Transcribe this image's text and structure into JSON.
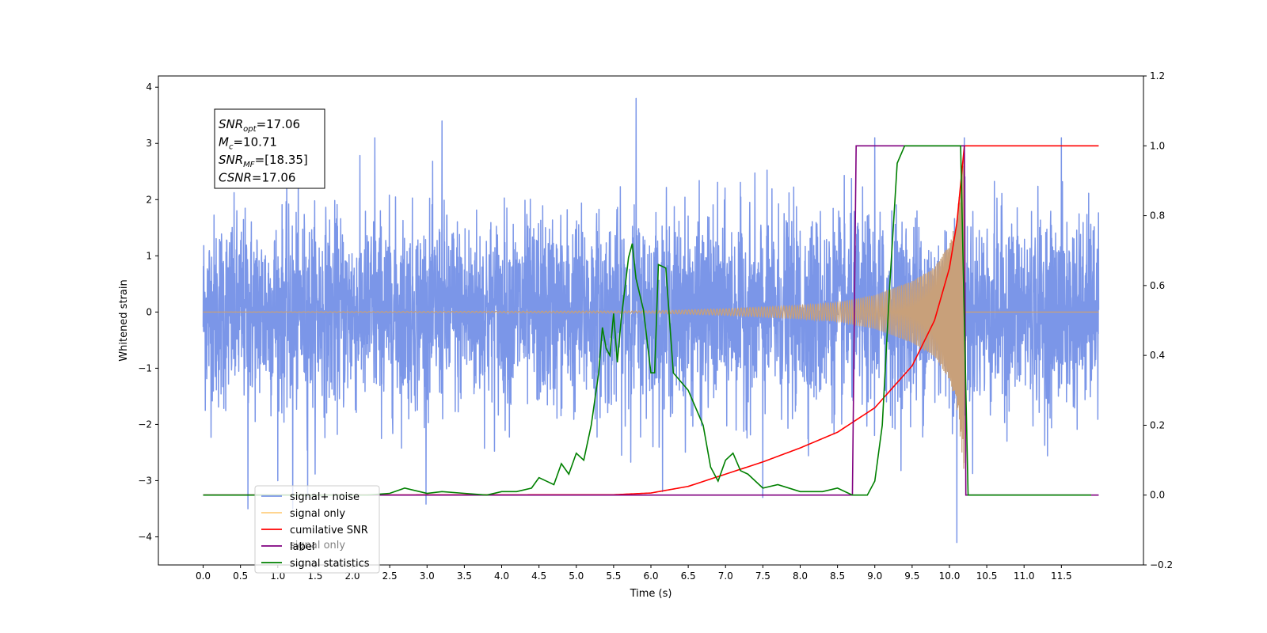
{
  "chart_data": {
    "type": "line",
    "xlabel": "Time (s)",
    "ylabel": "Whitened strain",
    "xlim": [
      -0.6,
      12.6
    ],
    "ylim": [
      -4.5,
      4.2
    ],
    "y2lim": [
      -0.2,
      1.2
    ],
    "x_ticks": [
      "0.0",
      "0.5",
      "1.0",
      "1.5",
      "2.0",
      "2.5",
      "3.0",
      "3.5",
      "4.0",
      "4.5",
      "5.0",
      "5.5",
      "6.0",
      "6.5",
      "7.0",
      "7.5",
      "8.0",
      "8.5",
      "9.0",
      "9.5",
      "10.0",
      "10.5",
      "11.0",
      "11.5"
    ],
    "y_ticks": [
      "−4",
      "−3",
      "−2",
      "−1",
      "0",
      "1",
      "2",
      "3",
      "4"
    ],
    "y2_ticks": [
      "−0.2",
      "0.0",
      "0.2",
      "0.4",
      "0.6",
      "0.8",
      "1.0",
      "1.2"
    ],
    "annotation": {
      "lines": [
        {
          "name": "SNR",
          "sub": "opt",
          "value": "=17.06"
        },
        {
          "name": "M",
          "sub": "c",
          "value": "=10.71"
        },
        {
          "name": "SNR",
          "sub": "MF",
          "value": "=[18.35]"
        },
        {
          "name": "CSNR",
          "sub": "",
          "value": "=17.06"
        }
      ]
    },
    "legend": {
      "position": "lower-left",
      "entries": [
        {
          "label": "signal+ noise",
          "color": "#7b96e8"
        },
        {
          "label": "signal only",
          "color": "#ffcf80"
        },
        {
          "label": "cumilative SNR",
          "color": "#ff0000"
        },
        {
          "label": "label",
          "color": "#800080"
        },
        {
          "label": "signal statistics",
          "color": "#008000"
        }
      ],
      "faded_label": "signal only"
    },
    "series": [
      {
        "name": "signal+ noise",
        "axis": "left",
        "color": "#7b96e8",
        "x_range": [
          0.0,
          12.0
        ],
        "noise_std": 1.0,
        "outliers": [
          [
            0.6,
            -3.5
          ],
          [
            1.0,
            -3.0
          ],
          [
            1.4,
            -3.3
          ],
          [
            2.3,
            3.1
          ],
          [
            3.2,
            3.4
          ],
          [
            5.8,
            3.8
          ],
          [
            9.0,
            3.1
          ],
          [
            10.1,
            -4.1
          ],
          [
            10.2,
            3.1
          ],
          [
            11.5,
            3.1
          ],
          [
            7.5,
            -3.3
          ],
          [
            1.2,
            -3.5
          ]
        ]
      },
      {
        "name": "signal only",
        "axis": "left",
        "color": "#c8a07a",
        "chirp_end": 10.2,
        "envelope": [
          [
            0.0,
            0.0
          ],
          [
            6.0,
            0.02
          ],
          [
            7.0,
            0.06
          ],
          [
            8.0,
            0.12
          ],
          [
            8.5,
            0.17
          ],
          [
            9.0,
            0.3
          ],
          [
            9.5,
            0.55
          ],
          [
            9.8,
            0.8
          ],
          [
            10.0,
            1.2
          ],
          [
            10.1,
            1.7
          ],
          [
            10.15,
            2.3
          ],
          [
            10.2,
            3.0
          ],
          [
            10.21,
            0.0
          ],
          [
            12.0,
            0.0
          ]
        ]
      },
      {
        "name": "cumilative SNR",
        "axis": "right",
        "color": "#ff0000",
        "points": [
          [
            0.0,
            0.0
          ],
          [
            5.5,
            0.001
          ],
          [
            6.0,
            0.006
          ],
          [
            6.5,
            0.025
          ],
          [
            7.0,
            0.06
          ],
          [
            7.5,
            0.095
          ],
          [
            8.0,
            0.135
          ],
          [
            8.5,
            0.18
          ],
          [
            9.0,
            0.25
          ],
          [
            9.5,
            0.37
          ],
          [
            9.8,
            0.5
          ],
          [
            10.0,
            0.65
          ],
          [
            10.1,
            0.78
          ],
          [
            10.2,
            1.0
          ],
          [
            12.0,
            1.0
          ]
        ]
      },
      {
        "name": "label",
        "axis": "right",
        "color": "#800080",
        "points": [
          [
            0.0,
            0.0
          ],
          [
            8.7,
            0.0
          ],
          [
            8.75,
            1.0
          ],
          [
            10.2,
            1.0
          ],
          [
            10.22,
            0.0
          ],
          [
            12.0,
            0.0
          ]
        ]
      },
      {
        "name": "signal statistics",
        "axis": "right",
        "color": "#008000",
        "points": [
          [
            0.0,
            0.0
          ],
          [
            2.2,
            0.0
          ],
          [
            2.5,
            0.005
          ],
          [
            2.7,
            0.02
          ],
          [
            2.9,
            0.01
          ],
          [
            3.0,
            0.005
          ],
          [
            3.2,
            0.01
          ],
          [
            3.5,
            0.005
          ],
          [
            3.8,
            0.0
          ],
          [
            4.0,
            0.01
          ],
          [
            4.2,
            0.01
          ],
          [
            4.4,
            0.02
          ],
          [
            4.5,
            0.05
          ],
          [
            4.6,
            0.04
          ],
          [
            4.7,
            0.03
          ],
          [
            4.8,
            0.09
          ],
          [
            4.9,
            0.06
          ],
          [
            5.0,
            0.12
          ],
          [
            5.1,
            0.1
          ],
          [
            5.2,
            0.2
          ],
          [
            5.3,
            0.35
          ],
          [
            5.35,
            0.48
          ],
          [
            5.4,
            0.42
          ],
          [
            5.45,
            0.4
          ],
          [
            5.5,
            0.52
          ],
          [
            5.55,
            0.38
          ],
          [
            5.6,
            0.5
          ],
          [
            5.7,
            0.68
          ],
          [
            5.75,
            0.72
          ],
          [
            5.8,
            0.62
          ],
          [
            5.9,
            0.53
          ],
          [
            6.0,
            0.35
          ],
          [
            6.05,
            0.35
          ],
          [
            6.1,
            0.66
          ],
          [
            6.2,
            0.65
          ],
          [
            6.3,
            0.35
          ],
          [
            6.5,
            0.3
          ],
          [
            6.7,
            0.2
          ],
          [
            6.8,
            0.08
          ],
          [
            6.9,
            0.04
          ],
          [
            7.0,
            0.1
          ],
          [
            7.1,
            0.12
          ],
          [
            7.2,
            0.07
          ],
          [
            7.3,
            0.06
          ],
          [
            7.5,
            0.02
          ],
          [
            7.7,
            0.03
          ],
          [
            8.0,
            0.01
          ],
          [
            8.3,
            0.01
          ],
          [
            8.5,
            0.02
          ],
          [
            8.7,
            0.0
          ],
          [
            8.9,
            0.0
          ],
          [
            9.0,
            0.04
          ],
          [
            9.1,
            0.2
          ],
          [
            9.2,
            0.6
          ],
          [
            9.3,
            0.95
          ],
          [
            9.4,
            1.0
          ],
          [
            10.15,
            1.0
          ],
          [
            10.25,
            0.0
          ],
          [
            11.9,
            0.0
          ]
        ]
      }
    ]
  }
}
